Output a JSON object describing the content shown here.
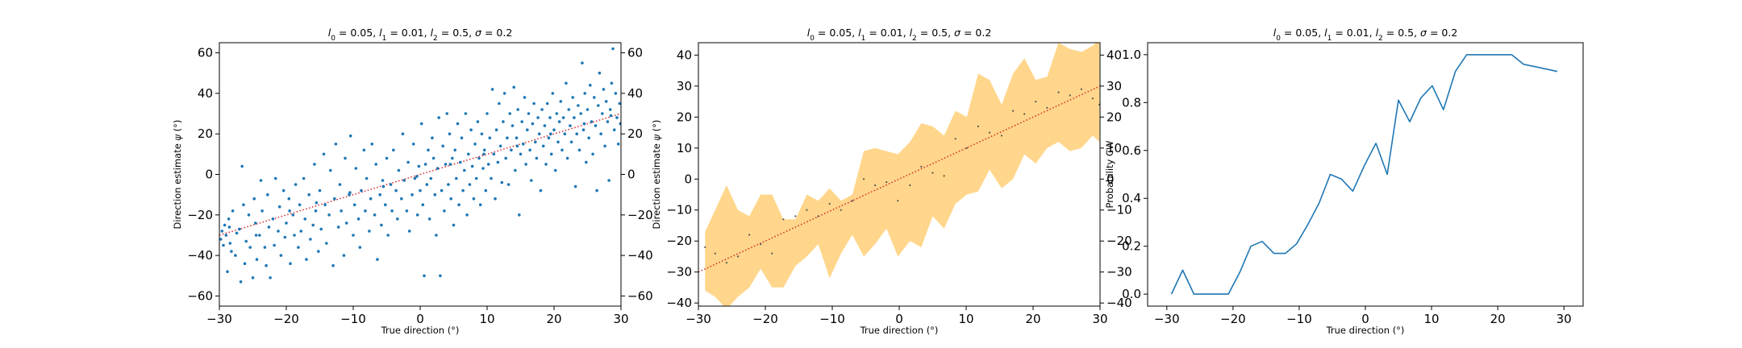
{
  "chart_data": [
    {
      "type": "scatter",
      "title": "l_0 = 0.05, l_1 = 0.01, l_2 = 0.5, σ = 0.2",
      "title_parts": {
        "l0": "0.05",
        "l1": "0.01",
        "l2": "0.5",
        "sigma": "0.2"
      },
      "xlabel": "True direction (°)",
      "ylabel": "Direction estimate ψ (°)",
      "xlim": [
        -30,
        30
      ],
      "ylim": [
        -65,
        65
      ],
      "xticks": [
        -30,
        -20,
        -10,
        0,
        10,
        20,
        30
      ],
      "yticks": [
        -60,
        -40,
        -20,
        0,
        20,
        40,
        60
      ],
      "right_yticks": [
        -60,
        -40,
        -20,
        0,
        20,
        40,
        60
      ],
      "grid": false,
      "colors": {
        "points": "#1f77b4",
        "reference_line": "#d62728"
      },
      "reference_line": {
        "style": "dotted",
        "x": [
          -30,
          30
        ],
        "y": [
          -30,
          30
        ]
      },
      "points": [
        [
          -29.8,
          -32
        ],
        [
          -29.6,
          -28
        ],
        [
          -29.4,
          -35
        ],
        [
          -29.2,
          -25
        ],
        [
          -29.0,
          -30
        ],
        [
          -28.8,
          -48
        ],
        [
          -28.6,
          -22
        ],
        [
          -28.4,
          -34
        ],
        [
          -28.2,
          -38
        ],
        [
          -28.0,
          -18
        ],
        [
          -27.6,
          -40
        ],
        [
          -27.4,
          -29
        ],
        [
          -27.0,
          -27
        ],
        [
          -26.8,
          -53
        ],
        [
          -26.6,
          4
        ],
        [
          -26.4,
          -15
        ],
        [
          -26.2,
          -44
        ],
        [
          -26.0,
          -33
        ],
        [
          -25.6,
          -20
        ],
        [
          -25.4,
          -36
        ],
        [
          -25.0,
          -51
        ],
        [
          -24.8,
          -12
        ],
        [
          -24.6,
          -24
        ],
        [
          -24.4,
          -42
        ],
        [
          -24.0,
          -30
        ],
        [
          -23.8,
          -3
        ],
        [
          -23.6,
          -18
        ],
        [
          -23.2,
          -36
        ],
        [
          -23.0,
          -45
        ],
        [
          -22.8,
          -10
        ],
        [
          -22.6,
          -26
        ],
        [
          -22.4,
          -51
        ],
        [
          -22.0,
          -22
        ],
        [
          -21.8,
          -35
        ],
        [
          -21.6,
          -2
        ],
        [
          -21.2,
          -28
        ],
        [
          -21.0,
          -16
        ],
        [
          -20.8,
          -40
        ],
        [
          -20.4,
          -8
        ],
        [
          -20.2,
          -31
        ],
        [
          -20.0,
          -24
        ],
        [
          -19.6,
          -12
        ],
        [
          -19.4,
          -44
        ],
        [
          -19.0,
          -20
        ],
        [
          -18.8,
          -30
        ],
        [
          -18.6,
          -5
        ],
        [
          -18.2,
          -36
        ],
        [
          -18.0,
          -15
        ],
        [
          -17.8,
          -28
        ],
        [
          -17.4,
          -2
        ],
        [
          -17.2,
          -22
        ],
        [
          -17.0,
          -42
        ],
        [
          -16.6,
          -10
        ],
        [
          -16.4,
          -32
        ],
        [
          -16.0,
          -25
        ],
        [
          -15.8,
          5
        ],
        [
          -15.6,
          -18
        ],
        [
          -15.2,
          -38
        ],
        [
          -15.0,
          -8
        ],
        [
          -14.8,
          -27
        ],
        [
          -14.4,
          10
        ],
        [
          -14.2,
          -15
        ],
        [
          -14.0,
          -34
        ],
        [
          -13.6,
          -20
        ],
        [
          -13.4,
          2
        ],
        [
          -13.0,
          -45
        ],
        [
          -12.8,
          -12
        ],
        [
          -12.6,
          15
        ],
        [
          -12.2,
          -26
        ],
        [
          -12.0,
          -5
        ],
        [
          -11.8,
          -18
        ],
        [
          -11.4,
          -40
        ],
        [
          -11.2,
          8
        ],
        [
          -11.0,
          -24
        ],
        [
          -10.6,
          -10
        ],
        [
          -10.4,
          19
        ],
        [
          -10.0,
          -30
        ],
        [
          -9.8,
          -15
        ],
        [
          -9.6,
          3
        ],
        [
          -9.2,
          -22
        ],
        [
          -9.0,
          -36
        ],
        [
          -8.8,
          -8
        ],
        [
          -8.4,
          12
        ],
        [
          -8.2,
          -18
        ],
        [
          -8.0,
          -2
        ],
        [
          -7.6,
          -28
        ],
        [
          -7.4,
          -12
        ],
        [
          -7.2,
          15
        ],
        [
          -6.8,
          -20
        ],
        [
          -6.6,
          5
        ],
        [
          -6.4,
          -42
        ],
        [
          -6.0,
          -10
        ],
        [
          -5.8,
          -25
        ],
        [
          -5.6,
          -3
        ],
        [
          -5.2,
          -15
        ],
        [
          -5.0,
          8
        ],
        [
          -4.8,
          -30
        ],
        [
          -4.4,
          -5
        ],
        [
          -4.2,
          -18
        ],
        [
          -4.0,
          12
        ],
        [
          -3.6,
          -8
        ],
        [
          -3.4,
          -22
        ],
        [
          -3.2,
          2
        ],
        [
          -2.8,
          -12
        ],
        [
          -2.6,
          20
        ],
        [
          -2.4,
          -3
        ],
        [
          -2.0,
          -18
        ],
        [
          -1.8,
          6
        ],
        [
          -1.6,
          -28
        ],
        [
          -1.2,
          -10
        ],
        [
          -1.0,
          15
        ],
        [
          -0.8,
          -2
        ],
        [
          -0.4,
          -20
        ],
        [
          -0.2,
          4
        ],
        [
          0.0,
          -8
        ],
        [
          0.2,
          25
        ],
        [
          0.4,
          -15
        ],
        [
          0.6,
          -50
        ],
        [
          0.8,
          5
        ],
        [
          1.0,
          -5
        ],
        [
          1.2,
          12
        ],
        [
          1.4,
          -22
        ],
        [
          1.6,
          -2
        ],
        [
          1.8,
          18
        ],
        [
          2.0,
          8
        ],
        [
          2.2,
          -10
        ],
        [
          2.4,
          -30
        ],
        [
          2.6,
          3
        ],
        [
          2.8,
          28
        ],
        [
          3.0,
          -50
        ],
        [
          3.2,
          -8
        ],
        [
          3.4,
          14
        ],
        [
          3.6,
          -18
        ],
        [
          3.8,
          5
        ],
        [
          4.0,
          30
        ],
        [
          4.2,
          -5
        ],
        [
          4.4,
          20
        ],
        [
          4.6,
          -12
        ],
        [
          4.8,
          8
        ],
        [
          5.0,
          -25
        ],
        [
          5.2,
          12
        ],
        [
          5.4,
          -2
        ],
        [
          5.6,
          25
        ],
        [
          5.8,
          -15
        ],
        [
          6.0,
          6
        ],
        [
          6.2,
          18
        ],
        [
          6.4,
          -8
        ],
        [
          6.6,
          2
        ],
        [
          6.8,
          30
        ],
        [
          7.0,
          -20
        ],
        [
          7.2,
          10
        ],
        [
          7.4,
          -5
        ],
        [
          7.6,
          22
        ],
        [
          7.8,
          4
        ],
        [
          8.0,
          -12
        ],
        [
          8.2,
          15
        ],
        [
          8.4,
          -2
        ],
        [
          8.6,
          26
        ],
        [
          8.8,
          8
        ],
        [
          9.0,
          -15
        ],
        [
          9.2,
          20
        ],
        [
          9.4,
          3
        ],
        [
          9.6,
          12
        ],
        [
          9.8,
          -8
        ],
        [
          10.0,
          30
        ],
        [
          10.2,
          5
        ],
        [
          10.4,
          18
        ],
        [
          10.6,
          -2
        ],
        [
          10.8,
          42
        ],
        [
          11.0,
          10
        ],
        [
          11.2,
          -12
        ],
        [
          11.4,
          22
        ],
        [
          11.6,
          6
        ],
        [
          11.8,
          35
        ],
        [
          12.0,
          14
        ],
        [
          12.2,
          -4
        ],
        [
          12.4,
          26
        ],
        [
          12.6,
          40
        ],
        [
          12.8,
          8
        ],
        [
          13.0,
          18
        ],
        [
          13.2,
          -5
        ],
        [
          13.4,
          30
        ],
        [
          13.6,
          12
        ],
        [
          13.8,
          24
        ],
        [
          14.0,
          43
        ],
        [
          14.2,
          2
        ],
        [
          14.4,
          18
        ],
        [
          14.6,
          32
        ],
        [
          14.8,
          -20
        ],
        [
          15.0,
          10
        ],
        [
          15.2,
          26
        ],
        [
          15.4,
          15
        ],
        [
          15.6,
          38
        ],
        [
          15.8,
          5
        ],
        [
          16.0,
          22
        ],
        [
          16.2,
          30
        ],
        [
          16.4,
          12
        ],
        [
          16.6,
          -3
        ],
        [
          16.8,
          25
        ],
        [
          17.0,
          35
        ],
        [
          17.2,
          16
        ],
        [
          17.4,
          8
        ],
        [
          17.6,
          28
        ],
        [
          17.8,
          20
        ],
        [
          18.0,
          -8
        ],
        [
          18.2,
          32
        ],
        [
          18.4,
          14
        ],
        [
          18.6,
          24
        ],
        [
          18.8,
          5
        ],
        [
          19.0,
          35
        ],
        [
          19.2,
          18
        ],
        [
          19.4,
          28
        ],
        [
          19.6,
          10
        ],
        [
          19.8,
          40
        ],
        [
          20.0,
          22
        ],
        [
          20.2,
          2
        ],
        [
          20.4,
          30
        ],
        [
          20.6,
          16
        ],
        [
          20.8,
          26
        ],
        [
          21.0,
          36
        ],
        [
          21.2,
          12
        ],
        [
          21.4,
          28
        ],
        [
          21.6,
          20
        ],
        [
          21.8,
          45
        ],
        [
          22.0,
          8
        ],
        [
          22.2,
          32
        ],
        [
          22.4,
          24
        ],
        [
          22.6,
          16
        ],
        [
          22.8,
          38
        ],
        [
          23.0,
          28
        ],
        [
          23.2,
          -6
        ],
        [
          23.4,
          20
        ],
        [
          23.6,
          34
        ],
        [
          23.8,
          12
        ],
        [
          24.0,
          30
        ],
        [
          24.2,
          55
        ],
        [
          24.4,
          22
        ],
        [
          24.6,
          40
        ],
        [
          24.8,
          6
        ],
        [
          25.0,
          32
        ],
        [
          25.2,
          18
        ],
        [
          25.4,
          44
        ],
        [
          25.6,
          26
        ],
        [
          25.8,
          10
        ],
        [
          26.0,
          38
        ],
        [
          26.2,
          24
        ],
        [
          26.4,
          -8
        ],
        [
          26.6,
          34
        ],
        [
          26.8,
          50
        ],
        [
          27.0,
          20
        ],
        [
          27.2,
          30
        ],
        [
          27.4,
          42
        ],
        [
          27.6,
          14
        ],
        [
          27.8,
          36
        ],
        [
          28.0,
          26
        ],
        [
          28.2,
          -3
        ],
        [
          28.4,
          32
        ],
        [
          28.6,
          45
        ],
        [
          28.8,
          62
        ],
        [
          29.0,
          22
        ],
        [
          29.2,
          40
        ],
        [
          29.4,
          28
        ],
        [
          29.6,
          15
        ],
        [
          29.8,
          35
        ],
        [
          29.9,
          25
        ],
        [
          -28.5,
          -26
        ],
        [
          -24.5,
          -30
        ],
        [
          -19.5,
          -18
        ],
        [
          -15.5,
          -14
        ],
        [
          -10.5,
          -9
        ],
        [
          -5.5,
          -6
        ],
        [
          -0.5,
          -1
        ],
        [
          4.5,
          5
        ],
        [
          9.5,
          10
        ],
        [
          14.5,
          14
        ],
        [
          19.5,
          20
        ],
        [
          24.5,
          25
        ],
        [
          28.5,
          29
        ]
      ]
    },
    {
      "type": "area",
      "title": "l_0 = 0.05, l_1 = 0.01, l_2 = 0.5, σ = 0.2",
      "title_parts": {
        "l0": "0.05",
        "l1": "0.01",
        "l2": "0.5",
        "sigma": "0.2"
      },
      "xlabel": "True direction (°)",
      "ylabel": "Direction estimate ψ (°)",
      "xlim": [
        -30,
        30
      ],
      "ylim": [
        -41,
        44
      ],
      "xticks": [
        -30,
        -20,
        -10,
        0,
        10,
        20,
        30
      ],
      "yticks": [
        -40,
        -30,
        -20,
        -10,
        0,
        10,
        20,
        30,
        40
      ],
      "right_yticks": [
        -40,
        -30,
        -20,
        -10,
        0,
        10,
        20,
        30,
        40
      ],
      "grid": false,
      "colors": {
        "band": "#ffc04d",
        "points": "#555555",
        "reference_line": "#d62728"
      },
      "reference_line": {
        "style": "dotted",
        "x": [
          -30,
          30
        ],
        "y": [
          -30,
          30
        ]
      },
      "x": [
        -29.0,
        -27.5,
        -25.8,
        -24.1,
        -22.4,
        -20.7,
        -19.0,
        -17.3,
        -15.5,
        -13.8,
        -12.1,
        -10.4,
        -8.7,
        -7.0,
        -5.3,
        -3.6,
        -1.9,
        -0.2,
        1.6,
        3.3,
        5.0,
        6.7,
        8.4,
        10.1,
        11.8,
        13.5,
        15.3,
        17.0,
        18.7,
        20.4,
        22.1,
        23.8,
        25.5,
        27.2,
        28.9,
        29.9
      ],
      "lower": [
        -36,
        -38,
        -42,
        -38,
        -35,
        -29,
        -35,
        -35,
        -28,
        -25,
        -21,
        -32,
        -24,
        -18,
        -25,
        -21,
        -16,
        -25,
        -20,
        -22,
        -12,
        -16,
        -8,
        -5,
        -4,
        3,
        -3,
        0,
        8,
        5,
        10,
        12,
        9,
        10,
        14,
        12
      ],
      "upper": [
        -17,
        -10,
        -2,
        -10,
        -12,
        -5,
        -5,
        -13,
        -13,
        -5,
        -7,
        -3,
        -7,
        -5,
        9,
        10,
        9,
        8,
        12,
        18,
        17,
        14,
        22,
        20,
        34,
        32,
        24,
        34,
        39,
        32,
        33,
        44,
        42,
        41,
        43,
        45
      ],
      "means": [
        -22,
        -24,
        -27,
        -25,
        -18,
        -21,
        -24,
        -13,
        -12,
        -10,
        -12,
        -8,
        -10,
        -7,
        0,
        -2,
        -1,
        -7,
        -2,
        4,
        2,
        1,
        13,
        10,
        17,
        15,
        14,
        22,
        21,
        25,
        23,
        28,
        27,
        29,
        26,
        24
      ]
    },
    {
      "type": "line",
      "title": "l_0 = 0.05, l_1 = 0.01, l_2 = 0.5, σ = 0.2",
      "title_parts": {
        "l0": "0.05",
        "l1": "0.01",
        "l2": "0.5",
        "sigma": "0.2"
      },
      "xlabel": "True direction (°)",
      "ylabel": "Probability CW",
      "xlim": [
        -32.9,
        32.9
      ],
      "ylim": [
        -0.05,
        1.05
      ],
      "xticks": [
        -30,
        -20,
        -10,
        0,
        10,
        20,
        30
      ],
      "yticks": [
        0.0,
        0.2,
        0.4,
        0.6,
        0.8,
        1.0
      ],
      "ytick_labels": [
        "0.0",
        "0.2",
        "0.4",
        "0.6",
        "0.8",
        "1.0"
      ],
      "grid": false,
      "colors": {
        "line": "#1f77b4"
      },
      "x": [
        -29.3,
        -27.6,
        -25.9,
        -24.1,
        -22.4,
        -20.7,
        -19.0,
        -17.3,
        -15.6,
        -13.8,
        -12.1,
        -10.4,
        -8.7,
        -7.0,
        -5.3,
        -3.6,
        -1.9,
        -0.1,
        1.6,
        3.3,
        5.0,
        6.7,
        8.4,
        10.1,
        11.8,
        13.6,
        15.3,
        17.0,
        18.7,
        20.4,
        22.1,
        23.9,
        25.6,
        27.3,
        29.0
      ],
      "y": [
        0.0,
        0.1,
        0.0,
        0.0,
        0.0,
        0.0,
        0.09,
        0.2,
        0.22,
        0.17,
        0.17,
        0.21,
        0.29,
        0.38,
        0.5,
        0.48,
        0.43,
        0.54,
        0.63,
        0.5,
        0.81,
        0.72,
        0.82,
        0.87,
        0.77,
        0.93,
        1.0,
        1.0,
        1.0,
        1.0,
        1.0,
        0.96,
        0.95,
        0.94,
        0.93
      ]
    }
  ]
}
